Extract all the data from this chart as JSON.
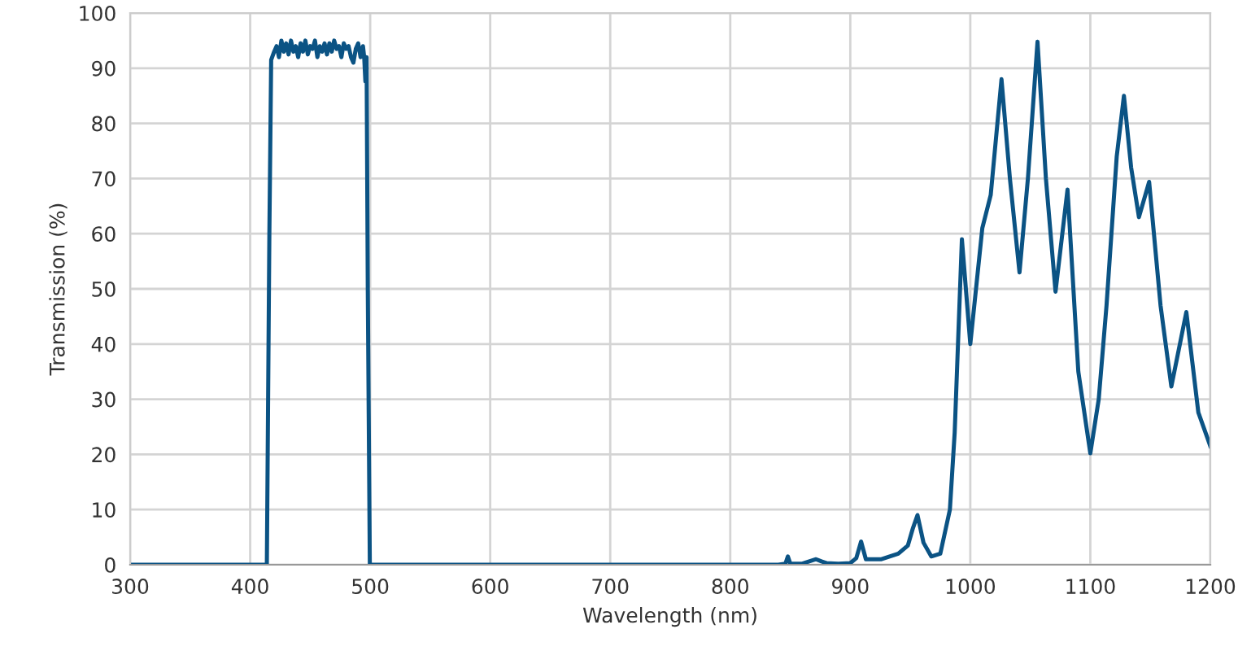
{
  "chart_data": {
    "type": "line",
    "xlabel": "Wavelength (nm)",
    "ylabel": "Transmission (%)",
    "xlim": [
      300,
      1200
    ],
    "ylim": [
      0,
      100
    ],
    "xticks": [
      300,
      400,
      500,
      600,
      700,
      800,
      900,
      1000,
      1100,
      1200
    ],
    "yticks": [
      0,
      10,
      20,
      30,
      40,
      50,
      60,
      70,
      80,
      90,
      100
    ],
    "grid": true,
    "marker": "none",
    "line_style": "solid",
    "series": [
      {
        "color": "#0b5384",
        "x": [
          300,
          413.9,
          416,
          417.5,
          420,
          422,
          424,
          426,
          428,
          430,
          432,
          434,
          436,
          438,
          440,
          442,
          444,
          446,
          448,
          450,
          452,
          454,
          456,
          458,
          460,
          462,
          464,
          466,
          468,
          470,
          472,
          474,
          476,
          478,
          480,
          482,
          484,
          486,
          488,
          490,
          492,
          494,
          495,
          496,
          497,
          498,
          499.7,
          840,
          846,
          848,
          850,
          860,
          871.5,
          876,
          880,
          890,
          900,
          905,
          909,
          913,
          926,
          940,
          948,
          952,
          956,
          961,
          967.5,
          975,
          983,
          987,
          993,
          1000,
          1010,
          1017,
          1026,
          1033,
          1041,
          1048,
          1056,
          1063,
          1071,
          1081,
          1090,
          1100,
          1107,
          1113.5,
          1122,
          1128,
          1134,
          1140.5,
          1149,
          1158.5,
          1167.5,
          1180,
          1190,
          1200
        ],
        "values": [
          0,
          0,
          60,
          91.5,
          93,
          94,
          92,
          95,
          93,
          94.5,
          92.5,
          95,
          93,
          94,
          92,
          94.5,
          93,
          95,
          92.5,
          94,
          93.5,
          95,
          92,
          94,
          93,
          94.5,
          92.5,
          94.5,
          93,
          95,
          93.5,
          94,
          92,
          94.5,
          93.5,
          94,
          92,
          91,
          93.5,
          94.5,
          92,
          94,
          92,
          87.6,
          92,
          50,
          0,
          0,
          0.2,
          1.5,
          0.2,
          0.2,
          1.0,
          0.6,
          0.3,
          0.2,
          0.3,
          1.2,
          4.2,
          1.0,
          1.0,
          2.0,
          3.5,
          6.5,
          9,
          4,
          1.5,
          2,
          10,
          24,
          59,
          40,
          61,
          67,
          88,
          70,
          53,
          70,
          94.8,
          70,
          49.5,
          68,
          35,
          20.2,
          30,
          47,
          74,
          85,
          72,
          63,
          69.4,
          47,
          32.3,
          45.8,
          27.6,
          21.5
        ]
      }
    ]
  }
}
